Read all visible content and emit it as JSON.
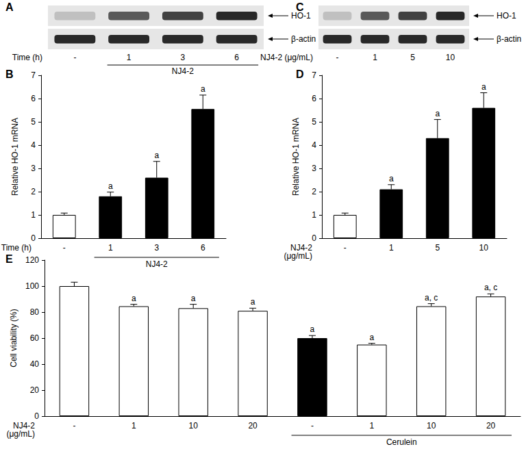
{
  "blots": [
    {
      "panel": "A",
      "bands": [
        "HO-1",
        "β-actin"
      ],
      "lanes": [
        "-",
        "1",
        "3",
        "6"
      ],
      "lane_title": "Time (h)",
      "treatment": [
        null,
        "NJ4-2",
        "NJ4-2",
        "NJ4-2"
      ]
    },
    {
      "panel": "C",
      "bands": [
        "HO-1",
        "β-actin"
      ],
      "lanes": [
        "-",
        "1",
        "5",
        "10"
      ],
      "lane_title": "NJ4-2 (μg/mL)",
      "treatment": [
        null,
        null,
        null,
        null
      ]
    }
  ],
  "chart_data": [
    {
      "type": "bar",
      "title": "B",
      "ylabel": "Relative HO-1 mRNA",
      "xlabel": "Time (h)",
      "categories": [
        "-",
        "1",
        "3",
        "6"
      ],
      "treatment": [
        null,
        "NJ4-2",
        "NJ4-2",
        "NJ4-2"
      ],
      "values": [
        1.0,
        1.8,
        2.6,
        5.55
      ],
      "errors": [
        0.08,
        0.18,
        0.7,
        0.6
      ],
      "annotations": [
        null,
        "a",
        "a",
        "a"
      ],
      "colors": [
        "#ffffff",
        "#000000",
        "#000000",
        "#000000"
      ],
      "ylim": [
        0,
        7
      ],
      "yticks": [
        0,
        1,
        2,
        3,
        4,
        5,
        6,
        7
      ],
      "grid": false
    },
    {
      "type": "bar",
      "title": "D",
      "ylabel": "Relative HO-1 mRNA",
      "xlabel": "NJ4-2\n(μg/mL)",
      "categories": [
        "-",
        "1",
        "5",
        "10"
      ],
      "treatment": [
        null,
        null,
        null,
        null
      ],
      "values": [
        1.0,
        2.1,
        4.3,
        5.6
      ],
      "errors": [
        0.08,
        0.2,
        0.8,
        0.65
      ],
      "annotations": [
        null,
        "a",
        "a",
        "a"
      ],
      "colors": [
        "#ffffff",
        "#000000",
        "#000000",
        "#000000"
      ],
      "ylim": [
        0,
        7
      ],
      "yticks": [
        0,
        1,
        2,
        3,
        4,
        5,
        6,
        7
      ],
      "grid": false
    },
    {
      "type": "bar",
      "title": "E",
      "ylabel": "Cell viability (%)",
      "xlabel": "NJ4-2\n(μg/mL)",
      "categories": [
        "-",
        "1",
        "10",
        "20",
        "-",
        "1",
        "10",
        "20"
      ],
      "treatment": [
        null,
        null,
        null,
        null,
        "Cerulein",
        "Cerulein",
        "Cerulein",
        "Cerulein"
      ],
      "values": [
        100,
        84.5,
        83,
        81,
        60,
        55,
        84.5,
        92
      ],
      "errors": [
        3,
        1.5,
        3,
        2,
        2,
        1,
        2,
        2
      ],
      "annotations": [
        null,
        "a",
        "a",
        "a",
        "a",
        "a",
        "a, c",
        "a, c"
      ],
      "colors": [
        "#ffffff",
        "#ffffff",
        "#ffffff",
        "#ffffff",
        "#000000",
        "#ffffff",
        "#ffffff",
        "#ffffff"
      ],
      "ylim": [
        0,
        120
      ],
      "yticks": [
        0,
        20,
        40,
        60,
        80,
        100,
        120
      ],
      "grid": false
    }
  ]
}
